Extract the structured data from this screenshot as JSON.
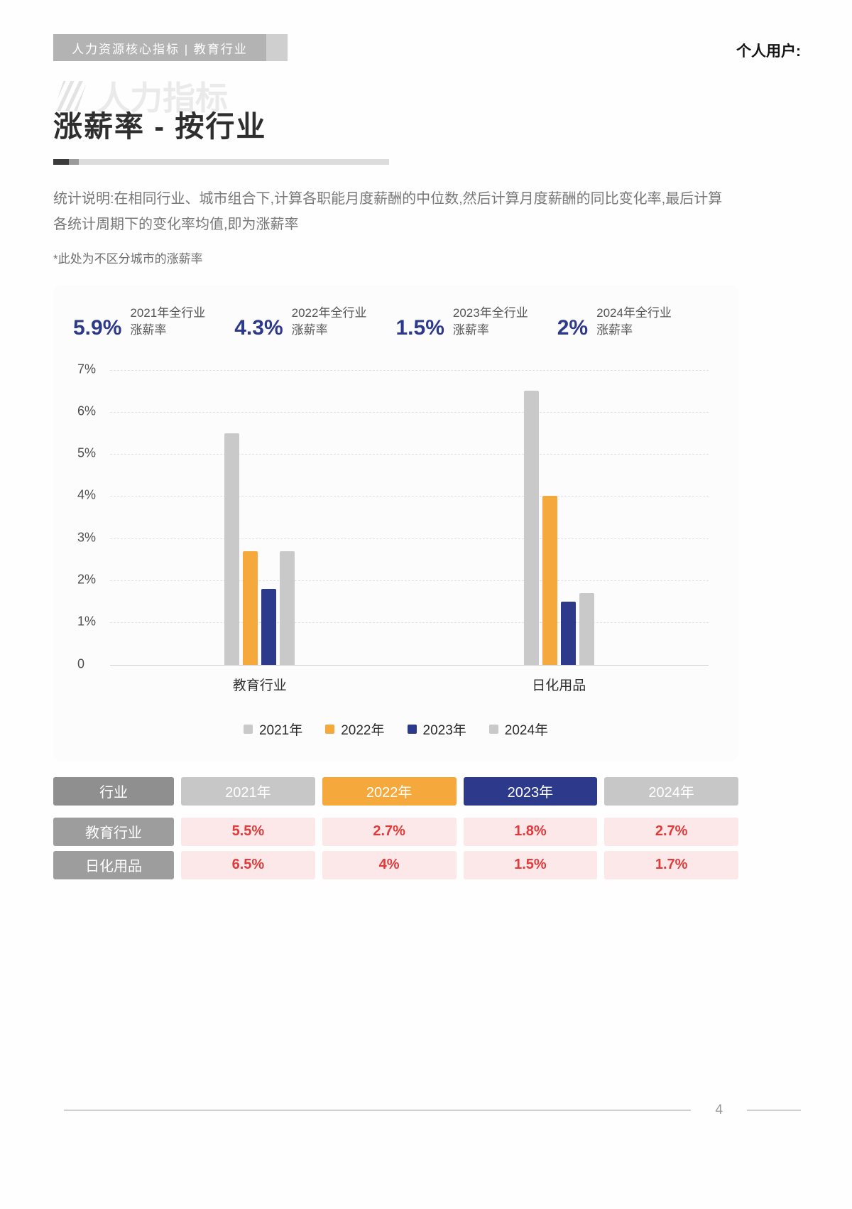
{
  "page": {
    "header": {
      "badge": "人力资源核心指标  |  教育行业",
      "user_label": "个人用户:"
    },
    "watermark": "人力指标",
    "title": "涨薪率 - 按行业",
    "description": "统计说明:在相同行业、城市组合下,计算各职能月度薪酬的中位数,然后计算月度薪酬的同比变化率,最后计算各统计周期下的变化率均值,即为涨薪率",
    "note": "*此处为不区分城市的涨薪率",
    "footer_page_number": "4"
  },
  "stats": [
    {
      "value": "5.9%",
      "label_line1": "2021年全行业",
      "label_line2": "涨薪率"
    },
    {
      "value": "4.3%",
      "label_line1": "2022年全行业",
      "label_line2": "涨薪率"
    },
    {
      "value": "1.5%",
      "label_line1": "2023年全行业",
      "label_line2": "涨薪率"
    },
    {
      "value": "2%",
      "label_line1": "2024年全行业",
      "label_line2": "涨薪率"
    }
  ],
  "chart_data": {
    "type": "bar",
    "categories": [
      "教育行业",
      "日化用品"
    ],
    "series": [
      {
        "name": "2021年",
        "color": "#c9c9c9",
        "values": [
          5.5,
          6.5
        ]
      },
      {
        "name": "2022年",
        "color": "#f5a93c",
        "values": [
          2.7,
          4.0
        ]
      },
      {
        "name": "2023年",
        "color": "#2d3a8c",
        "values": [
          1.8,
          1.5
        ]
      },
      {
        "name": "2024年",
        "color": "#c9c9c9",
        "values": [
          2.7,
          1.7
        ]
      }
    ],
    "ylim": [
      0,
      7
    ],
    "ytick_labels": [
      "7%",
      "6%",
      "5%",
      "4%",
      "3%",
      "2%",
      "1%",
      "0"
    ],
    "grid": "dashed-horizontal",
    "legend_position": "bottom"
  },
  "table": {
    "header": [
      {
        "label": "行业"
      },
      {
        "label": "2021年"
      },
      {
        "label": "2022年"
      },
      {
        "label": "2023年"
      },
      {
        "label": "2024年"
      }
    ],
    "rows": [
      {
        "name": "教育行业",
        "values": [
          "5.5%",
          "2.7%",
          "1.8%",
          "2.7%"
        ]
      },
      {
        "name": "日化用品",
        "values": [
          "6.5%",
          "4%",
          "1.5%",
          "1.7%"
        ]
      }
    ]
  },
  "colors": {
    "accent_orange": "#f5a93c",
    "accent_navy": "#2d3a8c",
    "bar_gray": "#c9c9c9",
    "table_value_red": "#e03a3a",
    "table_value_bg": "#fce8e8"
  }
}
